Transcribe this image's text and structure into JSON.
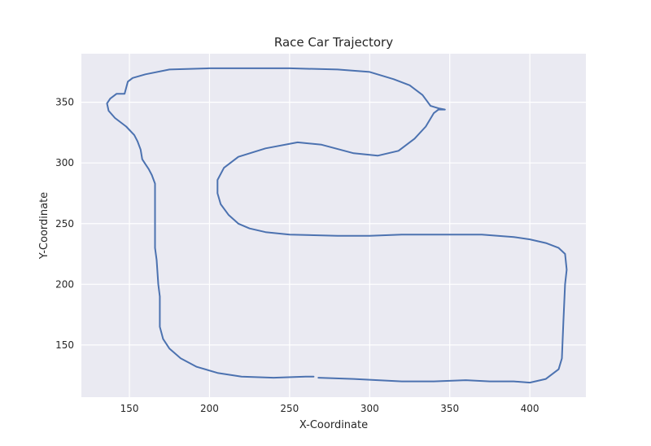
{
  "chart_data": {
    "type": "line",
    "title": "Race Car Trajectory",
    "xlabel": "X-Coordinate",
    "ylabel": "Y-Coordinate",
    "xlim": [
      120,
      435
    ],
    "ylim": [
      107,
      390
    ],
    "xticks": [
      150,
      200,
      250,
      300,
      350,
      400
    ],
    "yticks": [
      150,
      200,
      250,
      300,
      350
    ],
    "grid": true,
    "line_color": "#4c72b0",
    "background_color": "#eaeaf2",
    "series": [
      {
        "segments": [
          [
            [
              268,
              123
            ],
            [
              290,
              122
            ],
            [
              305,
              121
            ],
            [
              320,
              120
            ],
            [
              340,
              120
            ],
            [
              360,
              121
            ],
            [
              375,
              120
            ],
            [
              390,
              120
            ],
            [
              400,
              119
            ],
            [
              410,
              122
            ],
            [
              418,
              130
            ],
            [
              420,
              139
            ],
            [
              421,
              170
            ],
            [
              422,
              200
            ],
            [
              423,
              212
            ],
            [
              422,
              225
            ],
            [
              418,
              230
            ],
            [
              410,
              234
            ],
            [
              400,
              237
            ],
            [
              390,
              239
            ],
            [
              370,
              241
            ],
            [
              350,
              241
            ],
            [
              320,
              241
            ],
            [
              300,
              240
            ],
            [
              280,
              240
            ],
            [
              250,
              241
            ],
            [
              235,
              243
            ],
            [
              225,
              246
            ],
            [
              218,
              250
            ],
            [
              212,
              257
            ],
            [
              207,
              266
            ],
            [
              205,
              275
            ],
            [
              205,
              286
            ],
            [
              209,
              296
            ],
            [
              218,
              305
            ],
            [
              235,
              312
            ],
            [
              255,
              317
            ],
            [
              270,
              315
            ],
            [
              290,
              308
            ],
            [
              305,
              306
            ],
            [
              318,
              310
            ],
            [
              328,
              320
            ],
            [
              335,
              330
            ],
            [
              340,
              341
            ],
            [
              343,
              344
            ],
            [
              347,
              344
            ],
            [
              343,
              345
            ],
            [
              338,
              347
            ],
            [
              333,
              356
            ],
            [
              325,
              364
            ],
            [
              315,
              369
            ],
            [
              300,
              375
            ],
            [
              280,
              377
            ],
            [
              250,
              378
            ],
            [
              200,
              378
            ],
            [
              175,
              377
            ],
            [
              160,
              373
            ],
            [
              152,
              370
            ],
            [
              149,
              367
            ],
            [
              147,
              357
            ],
            [
              142,
              357
            ],
            [
              138,
              353
            ],
            [
              136,
              349
            ],
            [
              137,
              343
            ],
            [
              141,
              337
            ],
            [
              148,
              330
            ],
            [
              153,
              323
            ],
            [
              155,
              318
            ],
            [
              157,
              311
            ],
            [
              158,
              303
            ],
            [
              160,
              299
            ],
            [
              162,
              295
            ],
            [
              164,
              290
            ],
            [
              166,
              283
            ],
            [
              166,
              277
            ],
            [
              166,
              270
            ],
            [
              166,
              230
            ],
            [
              167,
              220
            ],
            [
              168,
              200
            ],
            [
              169,
              190
            ],
            [
              169,
              180
            ],
            [
              169,
              165
            ],
            [
              171,
              155
            ],
            [
              175,
              147
            ],
            [
              182,
              139
            ],
            [
              192,
              132
            ],
            [
              205,
              127
            ],
            [
              220,
              124
            ],
            [
              240,
              123
            ],
            [
              260,
              124
            ],
            [
              265,
              124
            ]
          ]
        ]
      }
    ]
  }
}
